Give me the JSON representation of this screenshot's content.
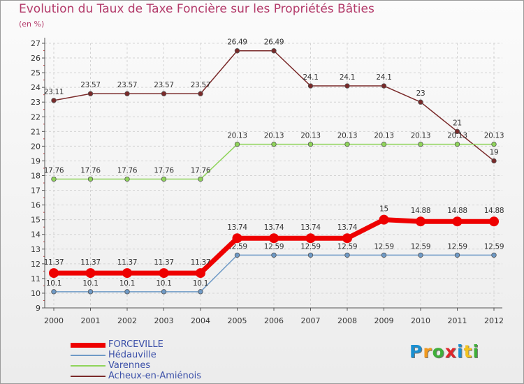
{
  "chart_data": {
    "type": "line",
    "title": "Evolution du Taux de Taxe Foncière sur les Propriétés Bâties",
    "ylabel": "(en %)",
    "xlabel": "",
    "x": [
      "2000",
      "2001",
      "2002",
      "2003",
      "2004",
      "2005",
      "2006",
      "2007",
      "2008",
      "2009",
      "2010",
      "2011",
      "2012"
    ],
    "ylim": [
      9,
      27
    ],
    "yticks": [
      "9",
      "10",
      "11",
      "12",
      "13",
      "14",
      "15",
      "16",
      "17",
      "18",
      "19",
      "20",
      "21",
      "22",
      "23",
      "24",
      "25",
      "26",
      "27"
    ],
    "grid": true,
    "legend_position": "bottom-left",
    "series": [
      {
        "name": "FORCEVILLE",
        "color": "#ee0000",
        "values": [
          11.37,
          11.37,
          11.37,
          11.37,
          11.37,
          13.74,
          13.74,
          13.74,
          13.74,
          15,
          14.88,
          14.88,
          14.88
        ],
        "labels": [
          "11.37",
          "11.37",
          "11.37",
          "11.37",
          "11.37",
          "13.74",
          "13.74",
          "13.74",
          "13.74",
          "15",
          "14.88",
          "14.88",
          "14.88"
        ]
      },
      {
        "name": "Hédauville",
        "color": "#6f9ac6",
        "values": [
          10.1,
          10.1,
          10.1,
          10.1,
          10.1,
          12.59,
          12.59,
          12.59,
          12.59,
          12.59,
          12.59,
          12.59,
          12.59
        ],
        "labels": [
          "10.1",
          "10.1",
          "10.1",
          "10.1",
          "10.1",
          "12.59",
          "12.59",
          "12.59",
          "12.59",
          "12.59",
          "12.59",
          "12.59",
          "12.59"
        ]
      },
      {
        "name": "Varennes",
        "color": "#8fd45a",
        "values": [
          17.76,
          17.76,
          17.76,
          17.76,
          17.76,
          20.13,
          20.13,
          20.13,
          20.13,
          20.13,
          20.13,
          20.13,
          20.13
        ],
        "labels": [
          "17.76",
          "17.76",
          "17.76",
          "17.76",
          "17.76",
          "20.13",
          "20.13",
          "20.13",
          "20.13",
          "20.13",
          "20.13",
          "20.13",
          "20.13"
        ]
      },
      {
        "name": "Acheux-en-Amiénois",
        "color": "#7a2a2a",
        "values": [
          23.11,
          23.57,
          23.57,
          23.57,
          23.57,
          26.49,
          26.49,
          24.1,
          24.1,
          24.1,
          23,
          21,
          19
        ],
        "labels": [
          "23.11",
          "23.57",
          "23.57",
          "23.57",
          "23.57",
          "26.49",
          "26.49",
          "24.1",
          "24.1",
          "24.1",
          "23",
          "21",
          "19"
        ]
      }
    ]
  },
  "logo": {
    "letters": [
      "P",
      "r",
      "o",
      "x",
      "i",
      "t",
      "i"
    ],
    "colors": [
      "#1a8fd0",
      "#f29a1f",
      "#3fae3a",
      "#e0262b",
      "#1a8fd0",
      "#f2c21f",
      "#3fae3a"
    ]
  }
}
